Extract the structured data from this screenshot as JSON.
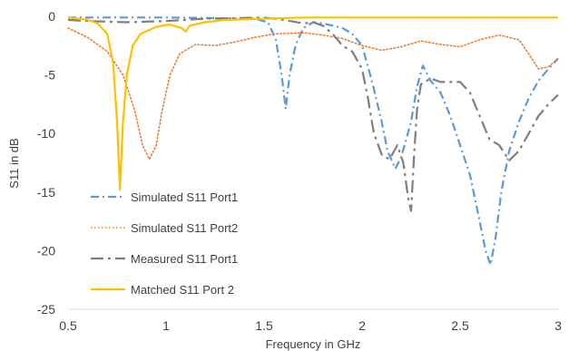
{
  "chart_data": {
    "type": "line",
    "title": "",
    "xlabel": "Frequency in GHz",
    "ylabel": "S11 in dB",
    "xlim": [
      0.5,
      3
    ],
    "ylim": [
      -25,
      0
    ],
    "xticks": [
      0.5,
      1,
      1.5,
      2,
      2.5,
      3
    ],
    "xtick_labels": [
      "0.5",
      "1",
      "1.5",
      "2",
      "2.5",
      "3"
    ],
    "yticks": [
      0,
      -5,
      -10,
      -15,
      -20,
      -25
    ],
    "ytick_labels": [
      "0",
      "-5",
      "-10",
      "-15",
      "-20",
      "-25"
    ],
    "grid": false,
    "legend_position": "lower-left",
    "series": [
      {
        "name": "Simulated S11 Port1",
        "color": "#5B9BD5",
        "style": "dash-dot",
        "points": [
          [
            0.5,
            -0.1
          ],
          [
            1.0,
            -0.1
          ],
          [
            1.45,
            -0.2
          ],
          [
            1.52,
            -0.5
          ],
          [
            1.56,
            -2.0
          ],
          [
            1.59,
            -5.0
          ],
          [
            1.61,
            -7.9
          ],
          [
            1.63,
            -5.0
          ],
          [
            1.66,
            -2.5
          ],
          [
            1.7,
            -1.0
          ],
          [
            1.75,
            -0.5
          ],
          [
            1.8,
            -0.6
          ],
          [
            1.85,
            -0.8
          ],
          [
            1.9,
            -1.0
          ],
          [
            1.95,
            -1.5
          ],
          [
            2.0,
            -2.5
          ],
          [
            2.05,
            -5.5
          ],
          [
            2.1,
            -9.0
          ],
          [
            2.13,
            -11.5
          ],
          [
            2.17,
            -13.0
          ],
          [
            2.2,
            -12.0
          ],
          [
            2.25,
            -9.0
          ],
          [
            2.28,
            -6.0
          ],
          [
            2.31,
            -4.2
          ],
          [
            2.35,
            -5.5
          ],
          [
            2.4,
            -6.5
          ],
          [
            2.45,
            -8.5
          ],
          [
            2.5,
            -11.0
          ],
          [
            2.55,
            -13.5
          ],
          [
            2.6,
            -17.5
          ],
          [
            2.63,
            -20.0
          ],
          [
            2.655,
            -21.2
          ],
          [
            2.68,
            -19.0
          ],
          [
            2.71,
            -15.0
          ],
          [
            2.75,
            -11.5
          ],
          [
            2.8,
            -9.0
          ],
          [
            2.85,
            -7.0
          ],
          [
            2.9,
            -5.5
          ],
          [
            2.95,
            -4.5
          ],
          [
            3.0,
            -3.6
          ]
        ]
      },
      {
        "name": "Simulated S11 Port2",
        "color": "#ED7D31",
        "style": "dotted",
        "points": [
          [
            0.5,
            -1.0
          ],
          [
            0.6,
            -1.8
          ],
          [
            0.7,
            -3.0
          ],
          [
            0.78,
            -5.0
          ],
          [
            0.84,
            -8.0
          ],
          [
            0.88,
            -11.0
          ],
          [
            0.915,
            -12.2
          ],
          [
            0.95,
            -11.0
          ],
          [
            0.98,
            -8.0
          ],
          [
            1.02,
            -5.0
          ],
          [
            1.07,
            -3.2
          ],
          [
            1.15,
            -2.4
          ],
          [
            1.25,
            -2.5
          ],
          [
            1.35,
            -2.2
          ],
          [
            1.45,
            -1.8
          ],
          [
            1.55,
            -1.5
          ],
          [
            1.7,
            -1.4
          ],
          [
            1.8,
            -1.6
          ],
          [
            1.9,
            -1.9
          ],
          [
            2.0,
            -2.5
          ],
          [
            2.1,
            -2.9
          ],
          [
            2.2,
            -2.6
          ],
          [
            2.3,
            -2.1
          ],
          [
            2.4,
            -2.4
          ],
          [
            2.5,
            -2.6
          ],
          [
            2.6,
            -2.0
          ],
          [
            2.7,
            -1.6
          ],
          [
            2.8,
            -2.0
          ],
          [
            2.85,
            -3.2
          ],
          [
            2.9,
            -4.5
          ],
          [
            2.95,
            -4.3
          ],
          [
            3.0,
            -3.6
          ]
        ]
      },
      {
        "name": "Measured S11 Port1",
        "color": "#7F7F7F",
        "style": "long-dash-dot",
        "points": [
          [
            0.5,
            -0.3
          ],
          [
            0.6,
            -0.4
          ],
          [
            0.8,
            -0.5
          ],
          [
            1.0,
            -0.4
          ],
          [
            1.2,
            -0.2
          ],
          [
            1.5,
            -0.1
          ],
          [
            1.6,
            -0.3
          ],
          [
            1.7,
            -0.6
          ],
          [
            1.75,
            -0.5
          ],
          [
            1.8,
            -0.8
          ],
          [
            1.85,
            -1.5
          ],
          [
            1.9,
            -2.5
          ],
          [
            1.95,
            -3.0
          ],
          [
            2.0,
            -4.5
          ],
          [
            2.03,
            -7.0
          ],
          [
            2.06,
            -10.0
          ],
          [
            2.1,
            -11.8
          ],
          [
            2.14,
            -12.2
          ],
          [
            2.18,
            -11.0
          ],
          [
            2.21,
            -12.5
          ],
          [
            2.235,
            -15.5
          ],
          [
            2.25,
            -16.6
          ],
          [
            2.265,
            -12.0
          ],
          [
            2.28,
            -8.0
          ],
          [
            2.3,
            -5.8
          ],
          [
            2.35,
            -5.3
          ],
          [
            2.4,
            -5.6
          ],
          [
            2.5,
            -5.6
          ],
          [
            2.55,
            -6.5
          ],
          [
            2.6,
            -8.5
          ],
          [
            2.65,
            -10.5
          ],
          [
            2.7,
            -11.0
          ],
          [
            2.75,
            -12.3
          ],
          [
            2.8,
            -11.5
          ],
          [
            2.85,
            -10.0
          ],
          [
            2.9,
            -8.5
          ],
          [
            2.95,
            -7.5
          ],
          [
            3.0,
            -6.7
          ]
        ]
      },
      {
        "name": "Matched S11 Port 2",
        "color": "#FFC000",
        "style": "solid",
        "points": [
          [
            0.5,
            -0.1
          ],
          [
            0.6,
            -0.3
          ],
          [
            0.65,
            -0.6
          ],
          [
            0.7,
            -1.5
          ],
          [
            0.73,
            -4.0
          ],
          [
            0.75,
            -9.0
          ],
          [
            0.765,
            -14.8
          ],
          [
            0.78,
            -9.0
          ],
          [
            0.8,
            -5.0
          ],
          [
            0.83,
            -2.5
          ],
          [
            0.87,
            -1.5
          ],
          [
            0.95,
            -0.9
          ],
          [
            1.02,
            -0.7
          ],
          [
            1.08,
            -1.0
          ],
          [
            1.1,
            -1.3
          ],
          [
            1.12,
            -0.8
          ],
          [
            1.2,
            -0.5
          ],
          [
            1.3,
            -0.3
          ],
          [
            1.5,
            -0.2
          ],
          [
            1.7,
            -0.1
          ],
          [
            2.0,
            -0.1
          ],
          [
            2.5,
            -0.1
          ],
          [
            3.0,
            -0.1
          ]
        ]
      }
    ]
  }
}
